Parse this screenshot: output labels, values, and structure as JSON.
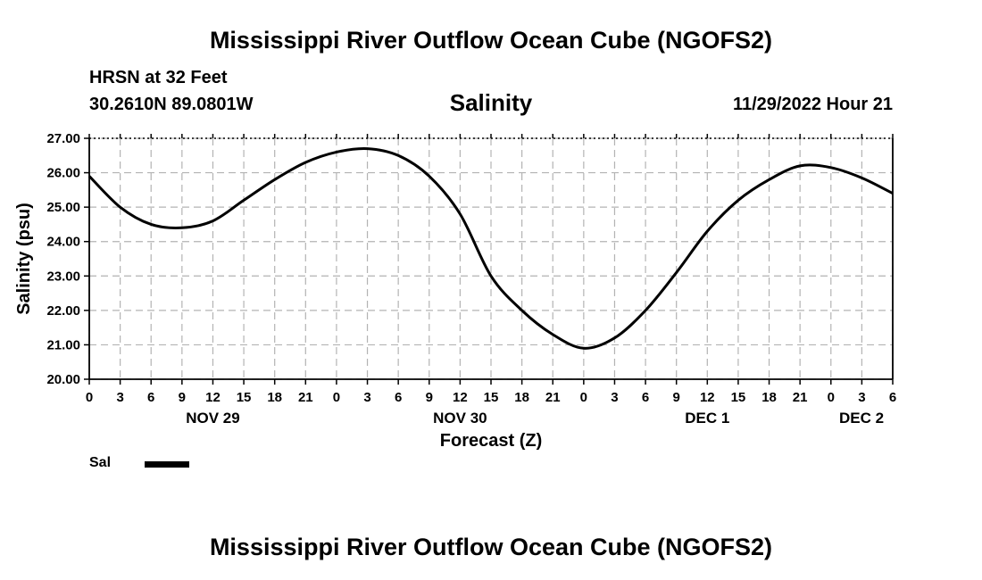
{
  "header": {
    "title": "Mississippi River Outflow Ocean Cube (NGOFS2)",
    "station": "HRSN at 32 Feet",
    "coordinates": "30.2610N  89.0801W",
    "timestamp": "11/29/2022 Hour 21",
    "footer_title": "Mississippi River Outflow Ocean Cube (NGOFS2)"
  },
  "legend": {
    "label": "Sal",
    "color": "#000000"
  },
  "chart_data": {
    "type": "line",
    "title": "Salinity",
    "xlabel": "Forecast (Z)",
    "ylabel": "Salinity (psu)",
    "xlim": [
      0,
      78
    ],
    "ylim": [
      20,
      27
    ],
    "grid": true,
    "yticks": [
      "20.00",
      "21.00",
      "22.00",
      "23.00",
      "24.00",
      "25.00",
      "26.00",
      "27.00"
    ],
    "xtick_labels": [
      "0",
      "3",
      "6",
      "9",
      "12",
      "15",
      "18",
      "21",
      "0",
      "3",
      "6",
      "9",
      "12",
      "15",
      "18",
      "21",
      "0",
      "3",
      "6",
      "9",
      "12",
      "15",
      "18",
      "21",
      "0",
      "3",
      "6"
    ],
    "date_labels": [
      {
        "hour": 12,
        "label": "NOV 29"
      },
      {
        "hour": 36,
        "label": "NOV 30"
      },
      {
        "hour": 60,
        "label": "DEC 1"
      },
      {
        "hour": 78,
        "label": "DEC 2"
      }
    ],
    "series": [
      {
        "name": "Sal",
        "color": "#000000",
        "x": [
          0,
          3,
          6,
          9,
          12,
          15,
          18,
          21,
          24,
          27,
          30,
          33,
          36,
          39,
          42,
          45,
          48,
          51,
          54,
          57,
          60,
          63,
          66,
          69,
          72,
          75,
          78
        ],
        "y": [
          25.9,
          25.0,
          24.5,
          24.4,
          24.6,
          25.2,
          25.8,
          26.3,
          26.6,
          26.7,
          26.5,
          25.9,
          24.8,
          23.0,
          22.0,
          21.3,
          20.9,
          21.2,
          22.0,
          23.1,
          24.3,
          25.2,
          25.8,
          26.2,
          26.15,
          25.85,
          25.4
        ]
      }
    ]
  }
}
